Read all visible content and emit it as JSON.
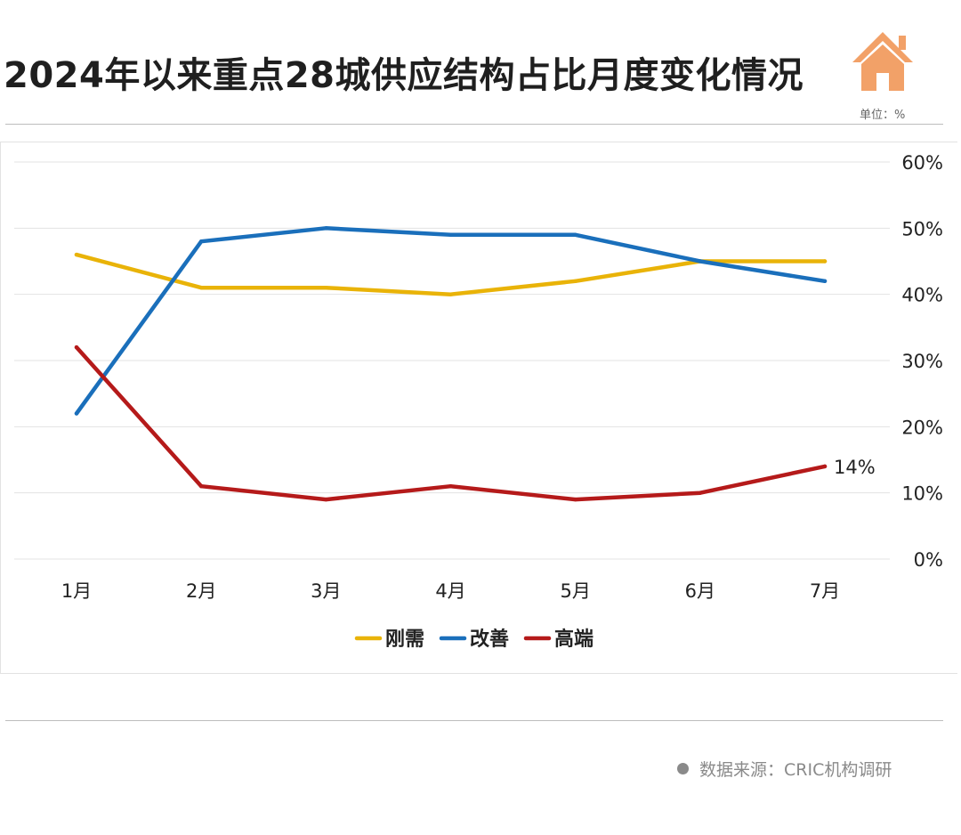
{
  "title": "2024年以来重点28城供应结构占比月度变化情况",
  "unit": "单位：%",
  "source": "数据来源：CRIC机构调研",
  "colors": {
    "刚需": "#e9b308",
    "改善": "#1a6fbb",
    "高端": "#b51a1a",
    "icon": "#f2a168"
  },
  "icons": {
    "header": "house-icon",
    "source": "bullet-dot"
  },
  "chart_data": {
    "type": "line",
    "categories": [
      "1月",
      "2月",
      "3月",
      "4月",
      "5月",
      "6月",
      "7月"
    ],
    "series": [
      {
        "name": "刚需",
        "values": [
          46,
          41,
          41,
          40,
          42,
          45,
          45
        ],
        "color": "#e9b308"
      },
      {
        "name": "改善",
        "values": [
          22,
          48,
          50,
          49,
          49,
          45,
          42
        ],
        "color": "#1a6fbb"
      },
      {
        "name": "高端",
        "values": [
          32,
          11,
          9,
          11,
          9,
          10,
          14
        ],
        "color": "#b51a1a"
      }
    ],
    "ylim": [
      0,
      60
    ],
    "yticks": [
      0,
      10,
      20,
      30,
      40,
      50,
      60
    ],
    "ytick_labels": [
      "0%",
      "10%",
      "20%",
      "30%",
      "40%",
      "50%",
      "60%"
    ],
    "y_axis_side": "right",
    "grid": true,
    "legend": "bottom",
    "annotations": [
      {
        "series": "高端",
        "category": "7月",
        "label": "14%"
      }
    ]
  }
}
